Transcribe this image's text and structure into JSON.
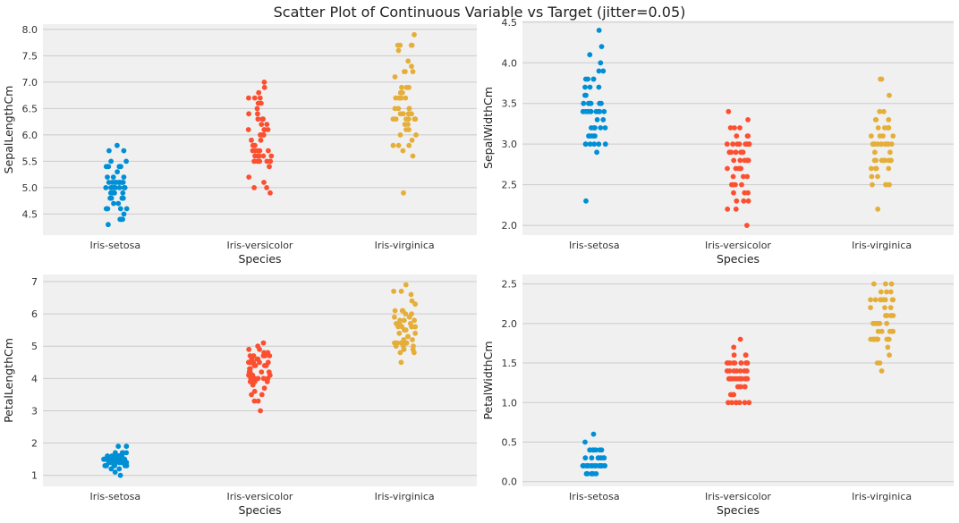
{
  "suptitle": "Scatter Plot of Continuous Variable vs Target (jitter=0.05)",
  "colors": {
    "Iris-setosa": "#008fd5",
    "Iris-versicolor": "#fc4f30",
    "Iris-virginica": "#e5ae38",
    "background": "#f0f0f0",
    "grid": "#cbcbcb"
  },
  "chart_data": [
    {
      "type": "scatter",
      "title": "",
      "xlabel": "Species",
      "ylabel": "SepalLengthCm",
      "categories": [
        "Iris-setosa",
        "Iris-versicolor",
        "Iris-virginica"
      ],
      "ylim": [
        4.1,
        8.1
      ],
      "yticks": [
        4.5,
        5.0,
        5.5,
        6.0,
        6.5,
        7.0,
        7.5,
        8.0
      ],
      "ytick_labels": [
        "4.5",
        "5.0",
        "5.5",
        "6.0",
        "6.5",
        "7.0",
        "7.5",
        "8.0"
      ],
      "grid": true,
      "series": [
        {
          "category": "Iris-setosa",
          "values": [
            5.1,
            4.9,
            4.7,
            4.6,
            5.0,
            5.4,
            4.6,
            5.0,
            4.4,
            4.9,
            5.4,
            4.8,
            4.8,
            4.3,
            5.8,
            5.7,
            5.4,
            5.1,
            5.7,
            5.1,
            5.4,
            5.1,
            4.6,
            5.1,
            4.8,
            5.0,
            5.0,
            5.2,
            5.2,
            4.7,
            4.8,
            5.4,
            5.2,
            5.5,
            4.9,
            5.0,
            5.5,
            4.9,
            4.4,
            5.1,
            5.0,
            4.5,
            4.4,
            5.0,
            5.1,
            4.8,
            5.1,
            4.6,
            5.3,
            5.0
          ]
        },
        {
          "category": "Iris-versicolor",
          "values": [
            7.0,
            6.4,
            6.9,
            5.5,
            6.5,
            5.7,
            6.3,
            4.9,
            6.6,
            5.2,
            5.0,
            5.9,
            6.0,
            6.1,
            5.6,
            6.7,
            5.6,
            5.8,
            6.2,
            5.6,
            5.9,
            6.1,
            6.3,
            6.1,
            6.4,
            6.6,
            6.8,
            6.7,
            6.0,
            5.7,
            5.5,
            5.5,
            5.8,
            6.0,
            5.4,
            6.0,
            6.7,
            6.3,
            5.6,
            5.5,
            5.5,
            6.1,
            5.8,
            5.0,
            5.6,
            5.7,
            5.7,
            6.2,
            5.1,
            5.7
          ]
        },
        {
          "category": "Iris-virginica",
          "values": [
            6.3,
            5.8,
            7.1,
            6.3,
            6.5,
            7.6,
            4.9,
            7.3,
            6.7,
            7.2,
            6.5,
            6.4,
            6.8,
            5.7,
            5.8,
            6.4,
            6.5,
            7.7,
            7.7,
            6.0,
            6.9,
            5.6,
            7.7,
            6.3,
            6.7,
            7.2,
            6.2,
            6.1,
            6.4,
            7.2,
            7.4,
            7.9,
            6.4,
            6.3,
            6.1,
            7.7,
            6.3,
            6.4,
            6.0,
            6.9,
            6.7,
            6.9,
            5.8,
            6.8,
            6.7,
            6.7,
            6.3,
            6.5,
            6.2,
            5.9
          ]
        }
      ]
    },
    {
      "type": "scatter",
      "title": "",
      "xlabel": "Species",
      "ylabel": "SepalWidthCm",
      "categories": [
        "Iris-setosa",
        "Iris-versicolor",
        "Iris-virginica"
      ],
      "ylim": [
        1.88,
        4.52
      ],
      "yticks": [
        2.0,
        2.5,
        3.0,
        3.5,
        4.0,
        4.5
      ],
      "ytick_labels": [
        "2.0",
        "2.5",
        "3.0",
        "3.5",
        "4.0",
        "4.5"
      ],
      "grid": true,
      "series": [
        {
          "category": "Iris-setosa",
          "values": [
            3.5,
            3.0,
            3.2,
            3.1,
            3.6,
            3.9,
            3.4,
            3.4,
            2.9,
            3.1,
            3.7,
            3.4,
            3.0,
            3.0,
            4.0,
            4.4,
            3.9,
            3.5,
            3.8,
            3.8,
            3.4,
            3.7,
            3.6,
            3.3,
            3.4,
            3.0,
            3.4,
            3.5,
            3.4,
            3.2,
            3.1,
            3.4,
            4.1,
            4.2,
            3.1,
            3.2,
            3.5,
            3.1,
            3.0,
            3.4,
            3.5,
            2.3,
            3.2,
            3.5,
            3.8,
            3.0,
            3.8,
            3.2,
            3.7,
            3.3
          ]
        },
        {
          "category": "Iris-versicolor",
          "values": [
            3.2,
            3.2,
            3.1,
            2.3,
            2.8,
            2.8,
            3.3,
            2.4,
            2.9,
            2.7,
            2.0,
            3.0,
            2.2,
            2.9,
            2.9,
            3.1,
            3.0,
            2.7,
            2.2,
            2.5,
            3.2,
            2.8,
            2.5,
            2.8,
            2.9,
            3.0,
            2.8,
            3.0,
            2.9,
            2.6,
            2.4,
            2.4,
            2.7,
            2.7,
            3.0,
            3.4,
            3.1,
            2.3,
            3.0,
            2.5,
            2.6,
            3.0,
            2.6,
            2.3,
            2.7,
            3.0,
            2.9,
            2.9,
            2.5,
            2.8
          ]
        },
        {
          "category": "Iris-virginica",
          "values": [
            3.3,
            2.7,
            3.0,
            2.9,
            3.0,
            3.0,
            2.5,
            2.9,
            2.5,
            3.6,
            3.2,
            2.7,
            3.0,
            2.5,
            2.8,
            3.2,
            3.0,
            3.8,
            2.6,
            2.2,
            3.2,
            2.8,
            2.8,
            2.7,
            3.3,
            3.2,
            2.8,
            3.0,
            2.8,
            3.0,
            2.8,
            3.8,
            2.8,
            2.8,
            2.6,
            3.0,
            3.4,
            3.1,
            3.0,
            3.1,
            3.1,
            3.1,
            2.7,
            3.2,
            3.3,
            3.0,
            2.5,
            3.0,
            3.4,
            3.0
          ]
        }
      ]
    },
    {
      "type": "scatter",
      "title": "",
      "xlabel": "Species",
      "ylabel": "PetalLengthCm",
      "categories": [
        "Iris-setosa",
        "Iris-versicolor",
        "Iris-virginica"
      ],
      "ylim": [
        0.66,
        7.22
      ],
      "yticks": [
        1,
        2,
        3,
        4,
        5,
        6,
        7
      ],
      "ytick_labels": [
        "1",
        "2",
        "3",
        "4",
        "5",
        "6",
        "7"
      ],
      "grid": true,
      "series": [
        {
          "category": "Iris-setosa",
          "values": [
            1.4,
            1.4,
            1.3,
            1.5,
            1.4,
            1.7,
            1.4,
            1.5,
            1.4,
            1.5,
            1.5,
            1.6,
            1.4,
            1.1,
            1.2,
            1.5,
            1.3,
            1.4,
            1.7,
            1.5,
            1.7,
            1.5,
            1.0,
            1.7,
            1.9,
            1.6,
            1.6,
            1.5,
            1.4,
            1.6,
            1.6,
            1.5,
            1.5,
            1.4,
            1.5,
            1.2,
            1.3,
            1.5,
            1.3,
            1.5,
            1.3,
            1.3,
            1.3,
            1.6,
            1.9,
            1.4,
            1.6,
            1.4,
            1.5,
            1.4
          ]
        },
        {
          "category": "Iris-versicolor",
          "values": [
            4.7,
            4.5,
            4.9,
            4.0,
            4.6,
            4.5,
            4.7,
            3.3,
            4.6,
            3.9,
            3.5,
            4.2,
            4.0,
            4.7,
            3.6,
            4.4,
            4.5,
            4.1,
            4.5,
            3.9,
            4.8,
            4.0,
            4.9,
            4.7,
            4.3,
            4.4,
            4.8,
            5.0,
            4.5,
            3.5,
            3.8,
            3.7,
            3.9,
            5.1,
            4.5,
            4.5,
            4.7,
            4.4,
            4.1,
            4.0,
            4.4,
            4.6,
            4.0,
            3.3,
            4.2,
            4.2,
            4.2,
            4.3,
            3.0,
            4.1
          ]
        },
        {
          "category": "Iris-virginica",
          "values": [
            6.0,
            5.1,
            5.9,
            5.6,
            5.8,
            6.6,
            4.5,
            6.3,
            5.8,
            6.1,
            5.1,
            5.3,
            5.5,
            5.0,
            5.1,
            5.3,
            5.5,
            6.7,
            6.9,
            5.0,
            5.7,
            4.9,
            6.7,
            4.9,
            5.7,
            6.0,
            4.8,
            4.9,
            5.6,
            5.8,
            6.1,
            6.4,
            5.6,
            5.1,
            5.6,
            6.1,
            5.6,
            5.5,
            4.8,
            5.4,
            5.6,
            5.1,
            5.1,
            5.9,
            5.7,
            5.2,
            5.0,
            5.2,
            5.4,
            5.1
          ]
        }
      ]
    },
    {
      "type": "scatter",
      "title": "",
      "xlabel": "Species",
      "ylabel": "PetalWidthCm",
      "categories": [
        "Iris-setosa",
        "Iris-versicolor",
        "Iris-virginica"
      ],
      "ylim": [
        -0.06,
        2.62
      ],
      "yticks": [
        0.0,
        0.5,
        1.0,
        1.5,
        2.0,
        2.5
      ],
      "ytick_labels": [
        "0.0",
        "0.5",
        "1.0",
        "1.5",
        "2.0",
        "2.5"
      ],
      "grid": true,
      "series": [
        {
          "category": "Iris-setosa",
          "values": [
            0.2,
            0.2,
            0.2,
            0.2,
            0.2,
            0.4,
            0.3,
            0.2,
            0.2,
            0.1,
            0.2,
            0.2,
            0.1,
            0.1,
            0.2,
            0.4,
            0.4,
            0.3,
            0.3,
            0.3,
            0.2,
            0.4,
            0.2,
            0.5,
            0.2,
            0.2,
            0.4,
            0.2,
            0.2,
            0.2,
            0.2,
            0.4,
            0.1,
            0.2,
            0.1,
            0.2,
            0.2,
            0.1,
            0.2,
            0.2,
            0.3,
            0.3,
            0.2,
            0.6,
            0.4,
            0.3,
            0.2,
            0.2,
            0.2,
            0.2
          ]
        },
        {
          "category": "Iris-versicolor",
          "values": [
            1.4,
            1.5,
            1.5,
            1.3,
            1.5,
            1.3,
            1.6,
            1.0,
            1.3,
            1.4,
            1.0,
            1.5,
            1.0,
            1.4,
            1.3,
            1.4,
            1.5,
            1.0,
            1.5,
            1.1,
            1.8,
            1.3,
            1.5,
            1.2,
            1.3,
            1.4,
            1.4,
            1.7,
            1.5,
            1.0,
            1.1,
            1.0,
            1.2,
            1.6,
            1.5,
            1.6,
            1.5,
            1.3,
            1.3,
            1.3,
            1.2,
            1.4,
            1.2,
            1.0,
            1.3,
            1.2,
            1.3,
            1.3,
            1.1,
            1.3
          ]
        },
        {
          "category": "Iris-virginica",
          "values": [
            2.5,
            1.9,
            2.1,
            1.8,
            2.2,
            2.1,
            1.7,
            1.8,
            1.8,
            2.5,
            2.0,
            1.9,
            2.1,
            2.0,
            2.4,
            2.3,
            1.8,
            2.2,
            2.3,
            1.5,
            2.3,
            2.0,
            2.0,
            1.8,
            2.1,
            1.8,
            1.8,
            1.8,
            2.1,
            1.6,
            1.9,
            2.0,
            2.2,
            1.5,
            1.4,
            2.3,
            2.4,
            1.8,
            1.8,
            2.1,
            2.4,
            2.3,
            1.9,
            2.3,
            2.5,
            2.3,
            1.9,
            2.0,
            2.3,
            1.8
          ]
        }
      ]
    }
  ]
}
